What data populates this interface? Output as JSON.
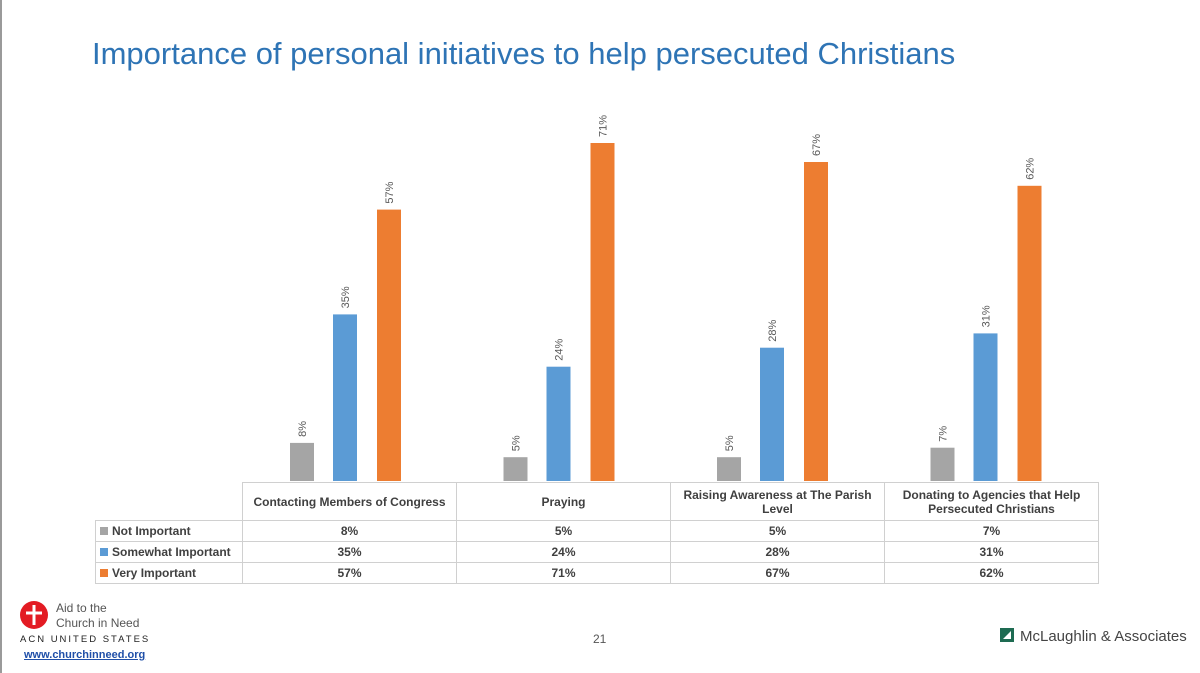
{
  "slide": {
    "title": "Importance of personal initiatives to help persecuted Christians",
    "page_number": "21",
    "footer": {
      "org_line1": "Aid to the",
      "org_line2": "Church in Need",
      "org_sub": "ACN UNITED STATES",
      "org_url": "www.churchinneed.org",
      "consultant": "McLaughlin & Associates"
    }
  },
  "chart_data": {
    "type": "bar",
    "title": "Importance of personal initiatives to help persecuted Christians",
    "categories": [
      "Contacting Members of Congress",
      "Praying",
      "Raising Awareness at The Parish Level",
      "Donating to Agencies that Help Persecuted Christians"
    ],
    "series": [
      {
        "name": "Not Important",
        "values": [
          8,
          5,
          5,
          7
        ],
        "labels": [
          "8%",
          "5%",
          "5%",
          "7%"
        ],
        "color": "#a5a5a5"
      },
      {
        "name": "Somewhat Important",
        "values": [
          35,
          24,
          28,
          31
        ],
        "labels": [
          "35%",
          "24%",
          "28%",
          "31%"
        ],
        "color": "#5b9bd5"
      },
      {
        "name": "Very Important",
        "values": [
          57,
          71,
          67,
          62
        ],
        "labels": [
          "57%",
          "71%",
          "67%",
          "62%"
        ],
        "color": "#ed7d31"
      }
    ],
    "ylim": [
      0,
      71
    ],
    "unit": "%",
    "grid": false,
    "legend": "data-table"
  }
}
